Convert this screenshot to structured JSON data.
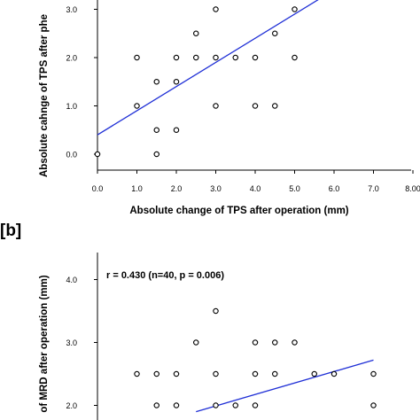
{
  "chart_data": [
    {
      "panel_label": "",
      "type": "scatter",
      "xlabel": "Absolute change of TPS after operation (mm)",
      "ylabel": "Absolute cahnge of TPS after phe",
      "x_ticks": [
        "0.0",
        "1.0",
        "2.0",
        "3.0",
        "4.0",
        "5.0",
        "6.0",
        "7.0",
        "8.00"
      ],
      "y_ticks": [
        "0.0",
        "1.0",
        "2.0",
        "3.0"
      ],
      "xlim": [
        0,
        8
      ],
      "ylim": [
        0,
        3.2
      ],
      "points": [
        [
          0,
          0
        ],
        [
          1,
          2
        ],
        [
          1,
          1
        ],
        [
          1.5,
          1.5
        ],
        [
          1.5,
          0.5
        ],
        [
          1.5,
          0
        ],
        [
          2,
          2
        ],
        [
          2,
          1.5
        ],
        [
          2,
          0.5
        ],
        [
          2.5,
          2.5
        ],
        [
          2.5,
          2
        ],
        [
          3,
          3
        ],
        [
          3,
          2
        ],
        [
          3,
          1
        ],
        [
          3.5,
          2
        ],
        [
          4,
          2
        ],
        [
          4,
          1
        ],
        [
          4.5,
          2.5
        ],
        [
          4.5,
          1
        ],
        [
          5,
          3
        ],
        [
          5,
          2
        ]
      ],
      "fit_line": {
        "x": [
          0,
          5.6
        ],
        "y": [
          0.4,
          3.2
        ]
      }
    },
    {
      "panel_label": "[b]",
      "type": "scatter",
      "xlabel": "",
      "ylabel": "of MRD after operation (mm)",
      "annotation": "r = 0.430 (n=40, p = 0.006)",
      "y_ticks": [
        "2.0",
        "3.0",
        "4.0"
      ],
      "ylim": [
        1.7,
        4.4
      ],
      "xlim": [
        0,
        8
      ],
      "points": [
        [
          1,
          2.5
        ],
        [
          1.5,
          2.5
        ],
        [
          1.5,
          2
        ],
        [
          2,
          2.5
        ],
        [
          2,
          2
        ],
        [
          2.5,
          3
        ],
        [
          3,
          3.5
        ],
        [
          3,
          2.5
        ],
        [
          3,
          2
        ],
        [
          3.5,
          2
        ],
        [
          4,
          3
        ],
        [
          4,
          2.5
        ],
        [
          4,
          2
        ],
        [
          4.5,
          3
        ],
        [
          4.5,
          2.5
        ],
        [
          5,
          3
        ],
        [
          5.5,
          2.5
        ],
        [
          6,
          2.5
        ],
        [
          7,
          2.5
        ],
        [
          7,
          2
        ]
      ],
      "fit_line": {
        "x": [
          2.5,
          7
        ],
        "y": [
          1.9,
          2.72
        ]
      }
    }
  ]
}
